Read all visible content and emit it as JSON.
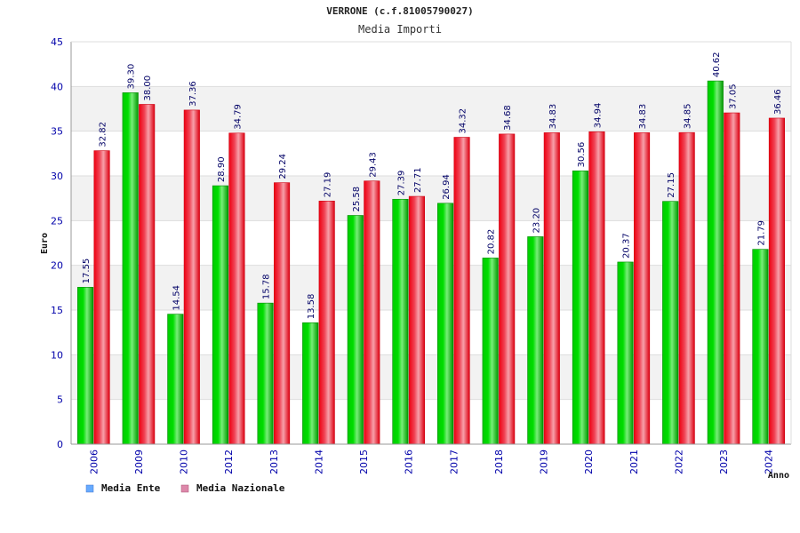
{
  "chart_data": {
    "type": "bar",
    "title": "VERRONE (c.f.81005790027)",
    "subtitle": "Media Importi",
    "xlabel": "Anno",
    "ylabel": "Euro",
    "ylim": [
      0,
      45
    ],
    "yticks": [
      0,
      5,
      10,
      15,
      20,
      25,
      30,
      35,
      40,
      45
    ],
    "grid": true,
    "legend_position": "bottom-left",
    "categories": [
      "2006",
      "2009",
      "2010",
      "2012",
      "2013",
      "2014",
      "2015",
      "2016",
      "2017",
      "2018",
      "2019",
      "2020",
      "2021",
      "2022",
      "2023",
      "2024"
    ],
    "series": [
      {
        "name": "Media Ente",
        "color": "#00aa00",
        "legend_color": "#66aaff",
        "values": [
          17.55,
          39.3,
          14.54,
          28.9,
          15.78,
          13.58,
          25.58,
          27.39,
          26.94,
          20.82,
          23.2,
          30.56,
          20.37,
          27.15,
          40.62,
          21.79
        ],
        "labels": [
          "17.55",
          "39.30",
          "14.54",
          "28.90",
          "15.78",
          "13.58",
          "25.58",
          "27.39",
          "26.94",
          "20.82",
          "23.20",
          "30.56",
          "20.37",
          "27.15",
          "40.62",
          "21.79"
        ]
      },
      {
        "name": "Media Nazionale",
        "color": "#ee1122",
        "legend_color": "#dd88aa",
        "values": [
          32.82,
          38.0,
          37.36,
          34.79,
          29.24,
          27.19,
          29.43,
          27.71,
          34.32,
          34.68,
          34.83,
          34.94,
          34.83,
          34.85,
          37.05,
          36.46
        ],
        "labels": [
          "32.82",
          "38.00",
          "37.36",
          "34.79",
          "29.24",
          "27.19",
          "29.43",
          "27.71",
          "34.32",
          "34.68",
          "34.83",
          "34.94",
          "34.83",
          "34.85",
          "37.05",
          "36.46"
        ]
      }
    ]
  }
}
